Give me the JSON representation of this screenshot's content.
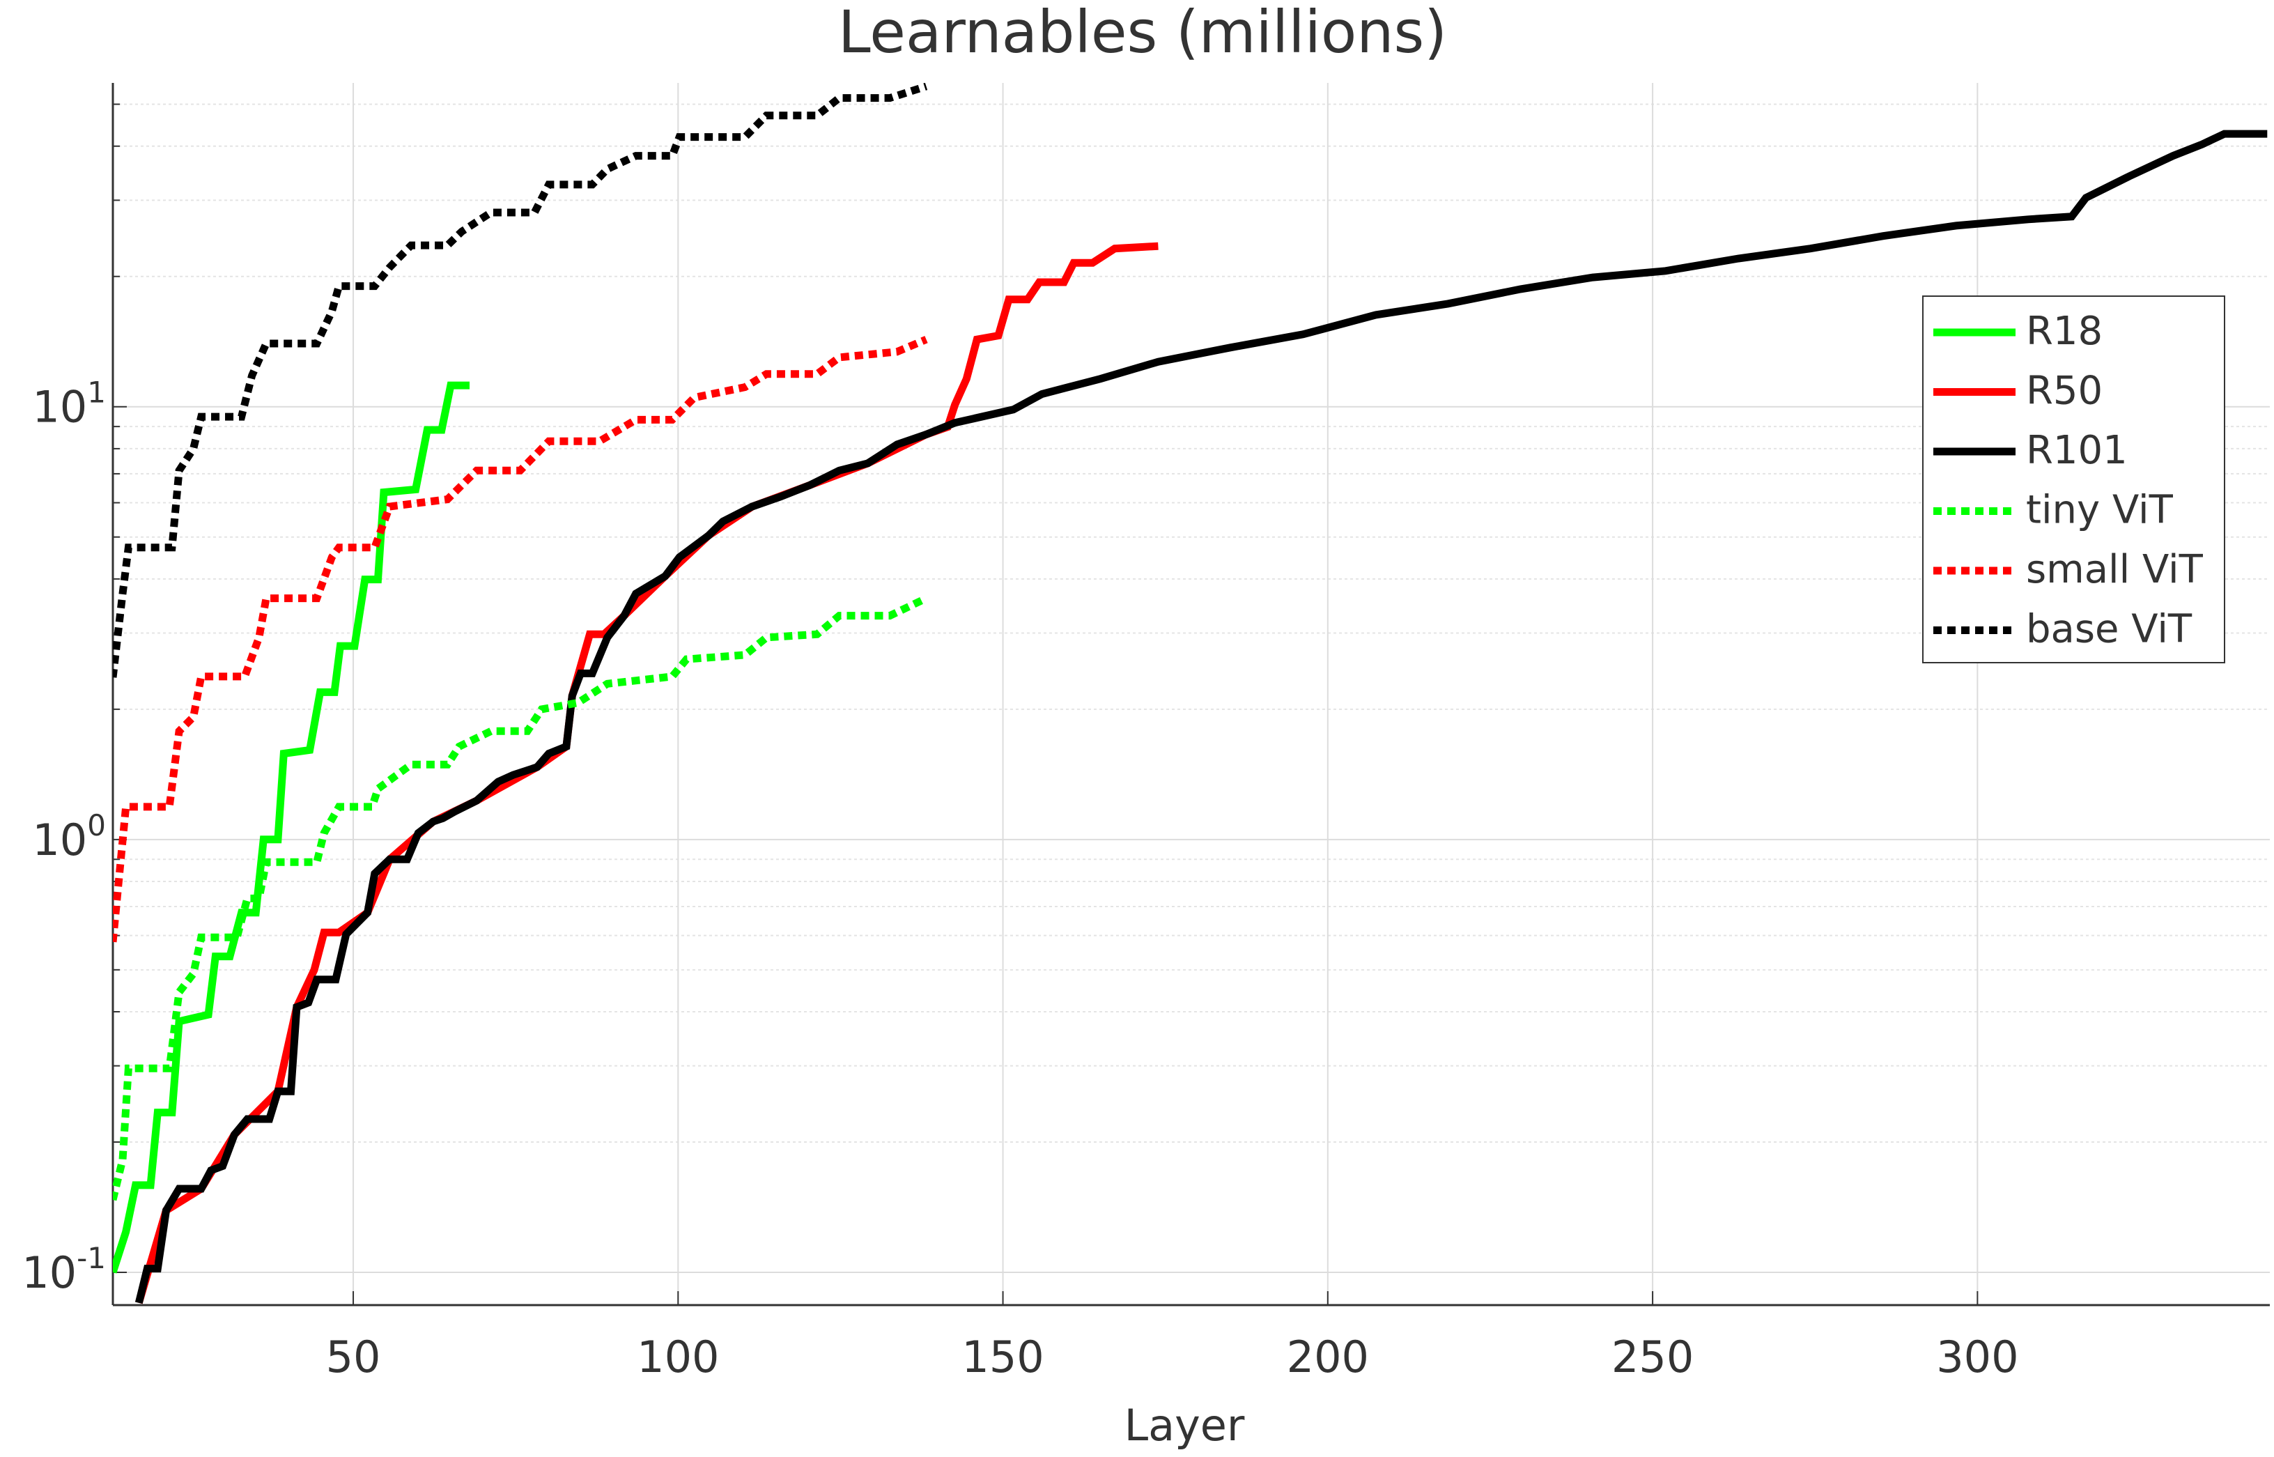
{
  "chart_data": {
    "type": "line",
    "title": "Learnables (millions)",
    "xlabel": "Layer",
    "xlim": [
      13,
      345
    ],
    "xticks": [
      50,
      100,
      150,
      200,
      250,
      300
    ],
    "ylim": [
      0.084,
      56
    ],
    "yscale": "log",
    "yticks": [
      {
        "value": 0.1,
        "label": "10",
        "exponent": "-1"
      },
      {
        "value": 1,
        "label": "10",
        "exponent": "0"
      },
      {
        "value": 10,
        "label": "10",
        "exponent": "1"
      }
    ],
    "yminorticks": [
      0.2,
      0.3,
      0.4,
      0.5,
      0.6,
      0.7,
      0.8,
      0.9,
      2,
      3,
      4,
      5,
      6,
      7,
      8,
      9,
      20,
      30,
      40,
      50
    ],
    "grid": true,
    "minor_grid": true,
    "legend": "northeast",
    "series": [
      {
        "name": "R18",
        "color": "#00ff00",
        "style": "solid",
        "x": [
          13,
          15,
          16.5,
          18.8,
          19.9,
          22.1,
          23.2,
          27.7,
          28.8,
          31,
          32.8,
          35,
          36.2,
          38.4,
          39.3,
          43.3,
          44.9,
          47.1,
          48,
          50.2,
          51.8,
          53.8,
          54.7,
          59.6,
          61.4,
          63.6,
          65,
          67.9
        ],
        "values": [
          0.1,
          0.124,
          0.159,
          0.159,
          0.234,
          0.234,
          0.38,
          0.394,
          0.537,
          0.537,
          0.678,
          0.678,
          1.0,
          1.0,
          1.58,
          1.61,
          2.19,
          2.19,
          2.8,
          2.8,
          3.99,
          3.99,
          6.34,
          6.44,
          8.84,
          8.84,
          11.2,
          11.2
        ]
      },
      {
        "name": "R50",
        "color": "#ff0000",
        "style": "solid",
        "x": [
          17,
          21.2,
          26.6,
          31.7,
          38.4,
          41.3,
          44,
          45.5,
          47.8,
          52.2,
          55.6,
          62.3,
          69,
          78.3,
          82.8,
          83.7,
          86.4,
          88.6,
          91.7,
          98,
          104.7,
          111.4,
          120.3,
          129.2,
          138.2,
          141.5,
          142.6,
          144.4,
          146,
          149.3,
          150.9,
          153.8,
          155.6,
          159.4,
          160.9,
          163.8,
          167.2,
          173.9
        ],
        "values": [
          0.085,
          0.139,
          0.156,
          0.208,
          0.262,
          0.41,
          0.5,
          0.61,
          0.61,
          0.678,
          0.9,
          1.1,
          1.23,
          1.47,
          1.64,
          2.15,
          2.98,
          2.98,
          3.29,
          4.06,
          5.04,
          5.88,
          6.59,
          7.4,
          8.63,
          8.98,
          10.1,
          11.6,
          14.3,
          14.6,
          17.7,
          17.7,
          19.4,
          19.4,
          21.5,
          21.5,
          23.2,
          23.5
        ]
      },
      {
        "name": "R101",
        "color": "#000000",
        "style": "solid",
        "x": [
          17,
          18.3,
          19.9,
          21.2,
          23.2,
          26.6,
          28.1,
          29.9,
          31.7,
          33.7,
          37.1,
          38.4,
          40.4,
          41.3,
          43.1,
          44.4,
          47.3,
          48.9,
          52.2,
          53.3,
          55.6,
          58.3,
          60,
          62.3,
          63.8,
          65.6,
          69,
          72.3,
          74.6,
          78.3,
          80.1,
          82.8,
          83.7,
          85,
          86.8,
          89.1,
          91.7,
          93.5,
          98,
          100.2,
          104.7,
          106.9,
          111.4,
          115.8,
          120.3,
          124.8,
          129.2,
          133.7,
          138.2,
          142.6,
          151.6,
          156,
          165,
          173.9,
          185,
          196.2,
          207.4,
          218.5,
          229.7,
          240.8,
          252,
          263.2,
          274.3,
          285.5,
          296.7,
          307.8,
          314.5,
          316.7,
          323.4,
          330.1,
          334.6,
          338,
          344.6
        ],
        "values": [
          0.085,
          0.102,
          0.102,
          0.139,
          0.156,
          0.156,
          0.172,
          0.176,
          0.208,
          0.226,
          0.226,
          0.262,
          0.262,
          0.41,
          0.42,
          0.475,
          0.475,
          0.604,
          0.678,
          0.834,
          0.9,
          0.9,
          1.035,
          1.1,
          1.12,
          1.16,
          1.23,
          1.36,
          1.41,
          1.47,
          1.58,
          1.64,
          2.15,
          2.42,
          2.42,
          2.93,
          3.29,
          3.7,
          4.06,
          4.49,
          5.04,
          5.43,
          5.88,
          6.2,
          6.59,
          7.12,
          7.4,
          8.18,
          8.63,
          9.18,
          9.85,
          10.7,
          11.6,
          12.7,
          13.7,
          14.7,
          16.3,
          17.3,
          18.7,
          19.9,
          20.6,
          22,
          23.2,
          24.8,
          26.2,
          27.1,
          27.5,
          30.4,
          34.1,
          38,
          40.4,
          42.7,
          42.7
        ]
      },
      {
        "name": "tiny ViT",
        "color": "#00ff00",
        "style": "dotted",
        "x": [
          13,
          14.5,
          15.4,
          21.7,
          23.2,
          25.4,
          26.6,
          32.1,
          33.7,
          35.5,
          36.6,
          44.4,
          45.5,
          47.8,
          52.9,
          53.8,
          58.9,
          64.5,
          66.3,
          71.2,
          76.8,
          79,
          84.6,
          89.1,
          99.1,
          101.3,
          110.3,
          113.6,
          121.4,
          124.8,
          132.6,
          138.2
        ],
        "values": [
          0.147,
          0.182,
          0.296,
          0.296,
          0.444,
          0.49,
          0.594,
          0.594,
          0.731,
          0.731,
          0.887,
          0.887,
          1.035,
          1.19,
          1.19,
          1.31,
          1.49,
          1.49,
          1.64,
          1.78,
          1.78,
          2.0,
          2.07,
          2.29,
          2.38,
          2.61,
          2.67,
          2.93,
          2.98,
          3.29,
          3.29,
          3.61
        ]
      },
      {
        "name": "small ViT",
        "color": "#ff0000",
        "style": "dotted",
        "x": [
          13,
          15,
          21.7,
          23.2,
          25.4,
          26.6,
          33.3,
          35.5,
          36.6,
          44.4,
          46.7,
          47.8,
          53.3,
          55.6,
          64.5,
          69,
          75.7,
          80.1,
          87.9,
          93.5,
          99.1,
          102.5,
          110.3,
          113.6,
          121.4,
          124.8,
          133.7,
          138.2
        ],
        "values": [
          0.58,
          1.19,
          1.19,
          1.78,
          1.92,
          2.38,
          2.38,
          2.93,
          3.61,
          3.61,
          4.49,
          4.73,
          4.73,
          5.88,
          6.11,
          7.12,
          7.12,
          8.32,
          8.32,
          9.33,
          9.33,
          10.5,
          11.1,
          11.9,
          11.9,
          13.0,
          13.4,
          14.3
        ]
      },
      {
        "name": "base ViT",
        "color": "#000000",
        "style": "dotted",
        "x": [
          13,
          14.5,
          15.4,
          22.1,
          23.2,
          25.4,
          26.6,
          32.8,
          34.4,
          36.6,
          44.4,
          46.7,
          47.8,
          53.3,
          55.6,
          58.9,
          64.5,
          66.7,
          71.2,
          77.9,
          80.1,
          86.8,
          89.1,
          93.5,
          99.1,
          100.2,
          110.3,
          113.6,
          121.4,
          124.8,
          132.6,
          138.2
        ],
        "values": [
          2.37,
          3.7,
          4.73,
          4.73,
          7.12,
          8.0,
          9.48,
          9.48,
          11.8,
          14.0,
          14.0,
          16.6,
          19.0,
          19.0,
          21.0,
          23.6,
          23.6,
          25.4,
          28.1,
          28.1,
          32.6,
          32.6,
          35.4,
          38.0,
          38.0,
          42.0,
          42.0,
          47.1,
          47.1,
          51.7,
          51.7,
          55
        ]
      }
    ]
  }
}
